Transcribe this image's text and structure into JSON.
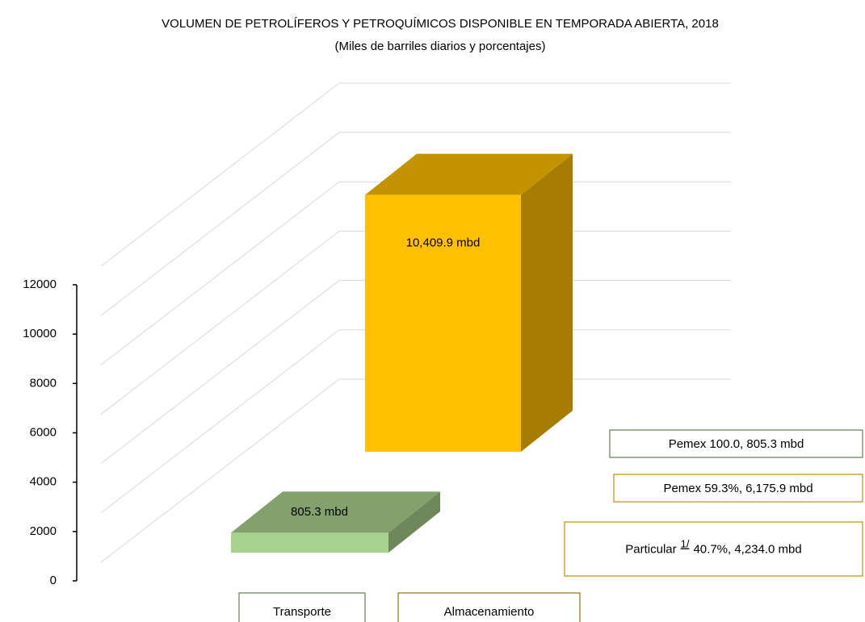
{
  "chart_data": {
    "type": "bar3d",
    "title": "VOLUMEN DE PETROLÍFEROS Y PETROQUÍMICOS DISPONIBLE EN TEMPORADA ABIERTA, 2018",
    "subtitle": "(Miles de barriles diarios y porcentajes)",
    "categories": [
      "Transporte",
      "Almacenamiento"
    ],
    "values": [
      805.3,
      10409.9
    ],
    "value_labels": [
      "805.3 mbd",
      "10,409.9 mbd"
    ],
    "colors": [
      "#a9d18e",
      "#ffc000"
    ],
    "ylim": [
      0,
      12000
    ],
    "yticks": [
      0,
      2000,
      4000,
      6000,
      8000,
      10000,
      12000
    ],
    "grid": true,
    "annotations": [
      {
        "text": "Pemex 100.0, 805.3 mbd"
      },
      {
        "text": "Pemex 59.3%, 6,175.9 mbd"
      },
      {
        "text": "Particular",
        "note": "1/",
        "detail": "40.7%, 4,234.0 mbd"
      }
    ]
  }
}
